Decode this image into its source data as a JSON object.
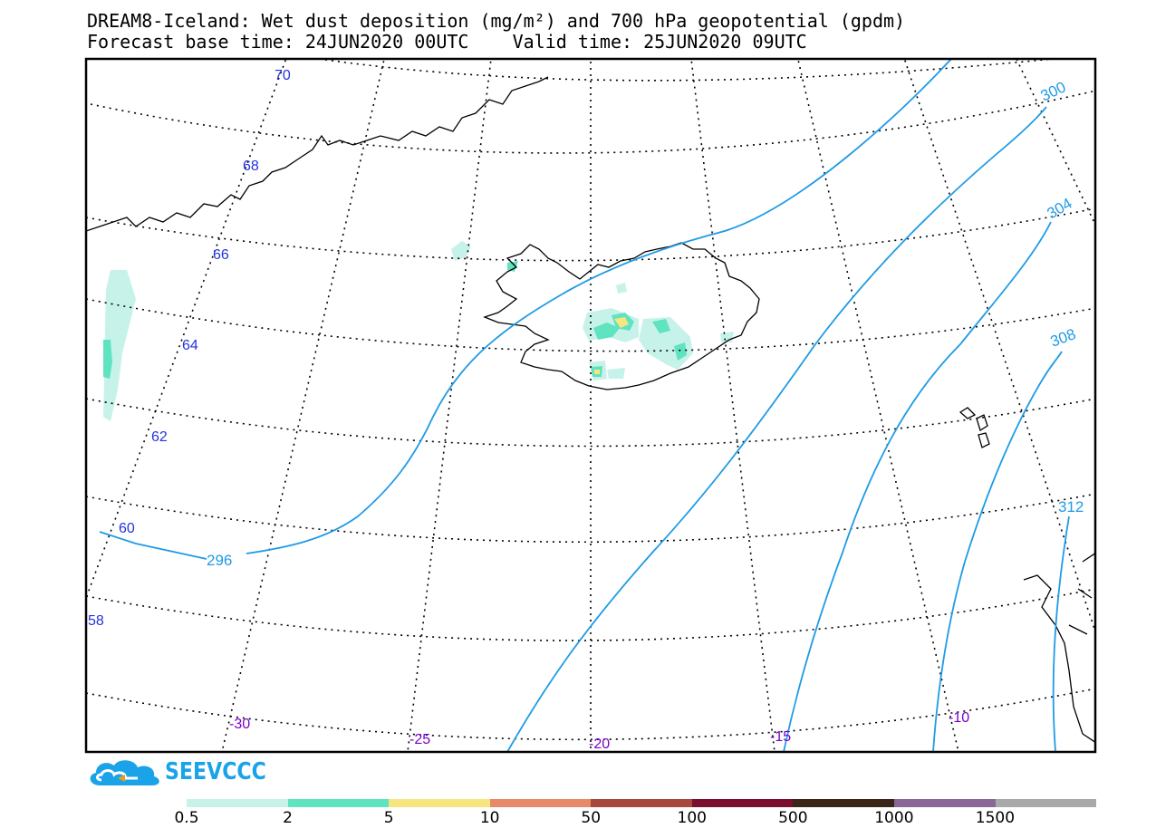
{
  "title": {
    "line1": "DREAM8-Iceland: Wet dust deposition (mg/m²) and 700 hPa geopotential (gpdm)",
    "line2": "Forecast base time: 24JUN2020 00UTC    Valid time: 25JUN2020 09UTC"
  },
  "latitude_labels": [
    "70",
    "68",
    "66",
    "64",
    "62",
    "60",
    "58"
  ],
  "longitude_labels": [
    "-30",
    "-25",
    "-20",
    "-15",
    "-10"
  ],
  "contour_labels": [
    "296",
    "300",
    "304",
    "308",
    "312"
  ],
  "logo": {
    "text": "SEEVCCC",
    "color": "#1aa3e8"
  },
  "legend": {
    "labels": [
      "0.5",
      "2",
      "5",
      "10",
      "50",
      "100",
      "500",
      "1000",
      "1500"
    ],
    "colors": [
      "#c6f2ea",
      "#5fe3c0",
      "#f7e57e",
      "#e8896a",
      "#a6483a",
      "#7b0d2e",
      "#3a2617",
      "#8a6796",
      "#a9a9a9"
    ]
  },
  "colors": {
    "contour": "#1f9be6",
    "lat_label": "#2233dd",
    "lon_label": "#7a00c8"
  }
}
